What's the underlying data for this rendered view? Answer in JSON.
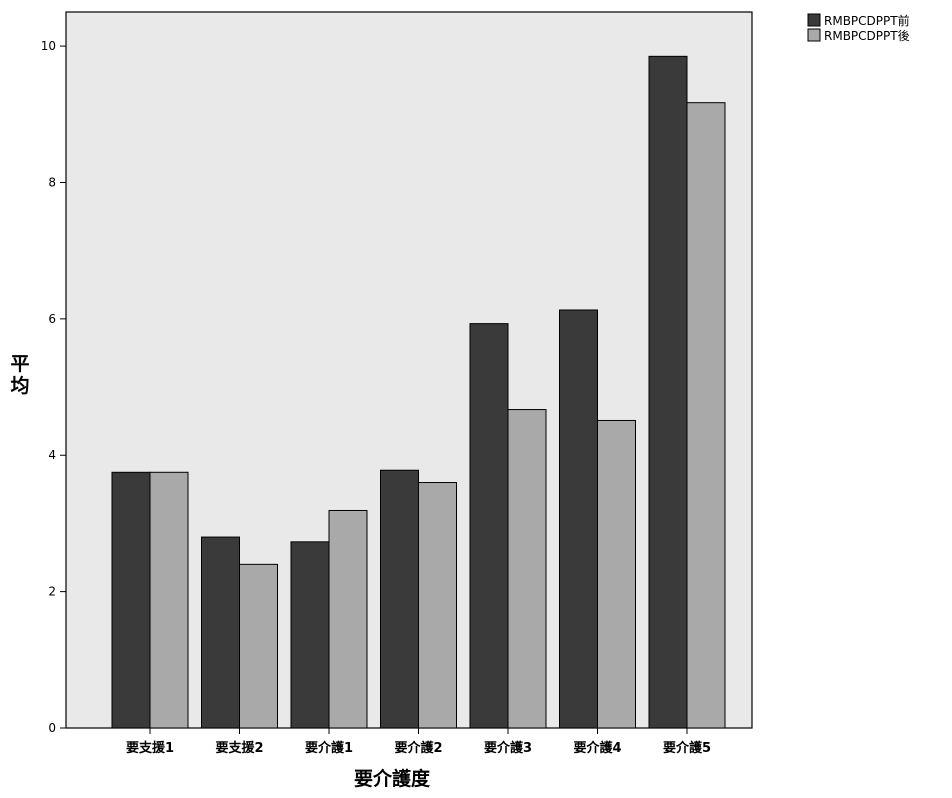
{
  "chart_data": {
    "type": "bar",
    "title": "",
    "xlabel": "要介護度",
    "ylabel": "平均",
    "categories": [
      "要支援1",
      "要支援2",
      "要介護1",
      "要介護2",
      "要介護3",
      "要介護4",
      "要介護5"
    ],
    "series": [
      {
        "name": "RMBPCDPPT前",
        "color": "#3a3a3a",
        "values": [
          3.75,
          2.8,
          2.73,
          3.78,
          5.93,
          6.13,
          9.85
        ]
      },
      {
        "name": "RMBPCDPPT後",
        "color": "#a9a9a9",
        "values": [
          3.75,
          2.4,
          3.19,
          3.6,
          4.67,
          4.51,
          9.17
        ]
      }
    ],
    "ylim": [
      0,
      10.5
    ],
    "yticks": [
      0,
      2,
      4,
      6,
      8,
      10
    ],
    "grid": false,
    "legend_position": "top-right",
    "plot_background": "#e9e9e9"
  }
}
